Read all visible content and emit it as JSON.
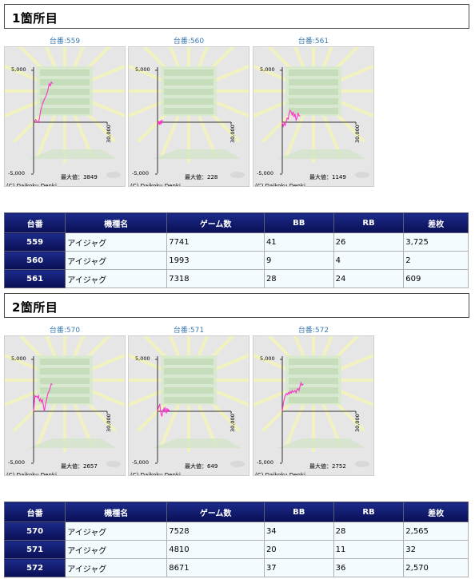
{
  "sections": [
    {
      "title": "1箇所目",
      "charts": [
        {
          "caption": "台番:559",
          "max_label": "最大値：3849",
          "copyright": "(C) Daikoku Denki.",
          "y_ticks": [
            "5,000",
            "-5,000"
          ],
          "x_tick": "30,000",
          "chart_data": {
            "type": "line",
            "x_range": [
              0,
              30000
            ],
            "ylim": [
              -5000,
              5000
            ],
            "x": [
              0,
              400,
              800,
              1200,
              1600,
              2000,
              2400,
              2800,
              3200,
              3600,
              4000,
              4400,
              4800,
              5200,
              5600,
              6000,
              6400,
              6800,
              7200,
              7741
            ],
            "y": [
              0,
              100,
              250,
              150,
              0,
              -50,
              400,
              1000,
              1400,
              1700,
              2000,
              2200,
              2400,
              2600,
              2900,
              3300,
              3700,
              3500,
              3850,
              3725
            ]
          }
        },
        {
          "caption": "台番:560",
          "max_label": "最大値：228",
          "copyright": "(C) Daikoku Denki.",
          "y_ticks": [
            "5,000",
            "-5,000"
          ],
          "x_tick": "30,000",
          "chart_data": {
            "type": "line",
            "x_range": [
              0,
              30000
            ],
            "ylim": [
              -5000,
              5000
            ],
            "x": [
              0,
              300,
              600,
              900,
              1200,
              1500,
              1800,
              1993
            ],
            "y": [
              0,
              -150,
              100,
              -250,
              150,
              -200,
              228,
              2
            ]
          }
        },
        {
          "caption": "台番:561",
          "max_label": "最大値：1149",
          "copyright": "(C) Daikoku Denki.",
          "y_ticks": [
            "5,000",
            "-5,000"
          ],
          "x_tick": "30,000",
          "chart_data": {
            "type": "line",
            "x_range": [
              0,
              30000
            ],
            "ylim": [
              -5000,
              5000
            ],
            "x": [
              0,
              400,
              800,
              1200,
              1600,
              2000,
              2400,
              2800,
              3200,
              3600,
              4000,
              4400,
              4800,
              5200,
              5600,
              6000,
              6400,
              6800,
              7318
            ],
            "y": [
              0,
              -400,
              -100,
              -300,
              100,
              400,
              300,
              900,
              1149,
              1000,
              700,
              1000,
              500,
              800,
              200,
              400,
              900,
              600,
              609
            ]
          }
        }
      ],
      "table": {
        "headers": [
          "台番",
          "機種名",
          "ゲーム数",
          "BB",
          "RB",
          "差枚"
        ],
        "rows": [
          [
            "559",
            "アイジャグ",
            "7741",
            "41",
            "26",
            "3,725"
          ],
          [
            "560",
            "アイジャグ",
            "1993",
            "9",
            "4",
            "2"
          ],
          [
            "561",
            "アイジャグ",
            "7318",
            "28",
            "24",
            "609"
          ]
        ]
      }
    },
    {
      "title": "2箇所目",
      "charts": [
        {
          "caption": "台番:570",
          "max_label": "最大値：2657",
          "copyright": "(C) Daikoku Denki.",
          "y_ticks": [
            "5,000",
            "-5,000"
          ],
          "x_tick": "30,000",
          "chart_data": {
            "type": "line",
            "x_range": [
              0,
              30000
            ],
            "ylim": [
              -5000,
              5000
            ],
            "x": [
              0,
              300,
              600,
              900,
              1200,
              1600,
              2000,
              2400,
              2800,
              3200,
              3600,
              4000,
              4400,
              4800,
              5200,
              5600,
              6000,
              6400,
              6800,
              7200,
              7528
            ],
            "y": [
              0,
              800,
              1500,
              1400,
              1450,
              1300,
              1500,
              1000,
              1200,
              900,
              1100,
              500,
              0,
              600,
              1000,
              1500,
              1800,
              2000,
              2300,
              2657,
              2565
            ]
          }
        },
        {
          "caption": "台番:571",
          "max_label": "最大値：649",
          "copyright": "(C) Daikoku Denki.",
          "y_ticks": [
            "5,000",
            "-5,000"
          ],
          "x_tick": "30,000",
          "chart_data": {
            "type": "line",
            "x_range": [
              0,
              30000
            ],
            "ylim": [
              -5000,
              5000
            ],
            "x": [
              0,
              300,
              600,
              900,
              1200,
              1500,
              1800,
              2100,
              2400,
              2700,
              3000,
              3300,
              3600,
              3900,
              4200,
              4500,
              4810
            ],
            "y": [
              0,
              300,
              500,
              649,
              100,
              -300,
              -500,
              0,
              200,
              -100,
              400,
              100,
              -200,
              300,
              0,
              150,
              32
            ]
          }
        },
        {
          "caption": "台番:572",
          "max_label": "最大値：2752",
          "copyright": "(C) Daikoku Denki.",
          "y_ticks": [
            "5,000",
            "-5,000"
          ],
          "x_tick": "30,000",
          "chart_data": {
            "type": "line",
            "x_range": [
              0,
              30000
            ],
            "ylim": [
              -5000,
              5000
            ],
            "x": [
              0,
              400,
              800,
              1200,
              1600,
              2000,
              2400,
              2800,
              3200,
              3600,
              4000,
              4400,
              4800,
              5200,
              5600,
              6000,
              6400,
              6800,
              7200,
              7600,
              8000,
              8300,
              8671
            ],
            "y": [
              0,
              700,
              1200,
              1500,
              1700,
              1600,
              1800,
              1650,
              1900,
              1750,
              2000,
              1850,
              1900,
              2000,
              1800,
              2100,
              2200,
              2000,
              2400,
              2752,
              2500,
              2600,
              2570
            ]
          }
        }
      ],
      "table": {
        "headers": [
          "台番",
          "機種名",
          "ゲーム数",
          "BB",
          "RB",
          "差枚"
        ],
        "rows": [
          [
            "570",
            "アイジャグ",
            "7528",
            "34",
            "28",
            "2,565"
          ],
          [
            "571",
            "アイジャグ",
            "4810",
            "20",
            "11",
            "32"
          ],
          [
            "572",
            "アイジャグ",
            "8671",
            "37",
            "36",
            "2,570"
          ]
        ]
      }
    }
  ],
  "colors": {
    "line": "#ff33cc",
    "header_bg": "#0f1a6e",
    "row_bg": "#f4fbff"
  }
}
